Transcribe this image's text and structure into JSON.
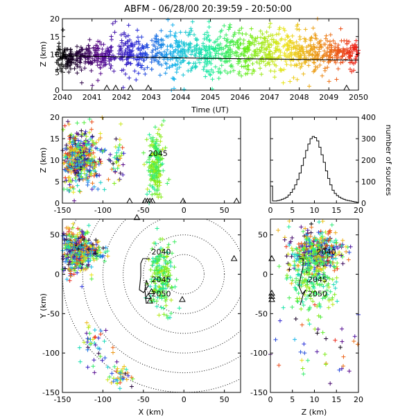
{
  "title": "ABFM - 06/28/00 20:39:59 - 20:50:00",
  "chart_data": [
    {
      "id": "time-height",
      "type": "scatter",
      "xlabel": "Time (UT)",
      "ylabel": "Z (km)",
      "xlim": [
        2040,
        2050
      ],
      "ylim": [
        0,
        20
      ],
      "x_ticks": [
        "2040",
        "2041",
        "2042",
        "2043",
        "2044",
        "2045",
        "2046",
        "2047",
        "2048",
        "2049",
        "2050"
      ],
      "y_ticks": [
        "0",
        "5",
        "10",
        "15",
        "20"
      ],
      "color_by": "time",
      "color_scale": [
        "#000000",
        "#5a0a8c",
        "#2a2ad8",
        "#18b4ec",
        "#18ec9c",
        "#6cec18",
        "#ece418",
        "#ec8c18",
        "#ec1818"
      ],
      "trend_line": [
        [
          2040,
          9.6
        ],
        [
          2045,
          8.9
        ],
        [
          2050,
          8.4
        ]
      ],
      "ground_markers_x": [
        2041.5,
        2041.8,
        2042.3,
        2042.9,
        2049.6
      ],
      "density": [
        {
          "t": 2040.3,
          "zc": 9.0,
          "spread": 1.6
        },
        {
          "t": 2041.3,
          "zc": 9.5,
          "spread": 2.0
        },
        {
          "t": 2042.4,
          "zc": 10.0,
          "spread": 2.5
        },
        {
          "t": 2043.5,
          "zc": 10.5,
          "spread": 3.0
        },
        {
          "t": 2044.5,
          "zc": 10.5,
          "spread": 3.0
        },
        {
          "t": 2045.5,
          "zc": 10.5,
          "spread": 3.0
        },
        {
          "t": 2046.5,
          "zc": 10.5,
          "spread": 3.0
        },
        {
          "t": 2047.5,
          "zc": 10.5,
          "spread": 3.0
        },
        {
          "t": 2048.5,
          "zc": 10.5,
          "spread": 2.5
        },
        {
          "t": 2049.5,
          "zc": 10.5,
          "spread": 2.0
        }
      ]
    },
    {
      "id": "x-z",
      "type": "scatter",
      "xlabel": "",
      "ylabel": "Z (km)",
      "xlim": [
        -150,
        70
      ],
      "ylim": [
        0,
        20
      ],
      "x_ticks": [
        "-150",
        "-100",
        "-50",
        "0",
        "50"
      ],
      "y_ticks": [
        "0",
        "5",
        "10",
        "15",
        "20"
      ],
      "annotations": [
        {
          "text": "2045",
          "x": -44,
          "z": 11.0
        }
      ],
      "ground_markers_x": [
        -67,
        -48,
        -45,
        -42,
        -39,
        -1,
        65
      ],
      "clusters": [
        {
          "xc": -132,
          "zc": 10.5,
          "sx": 10,
          "sz": 3.0,
          "n": 420
        },
        {
          "xc": -112,
          "zc": 10.0,
          "sx": 8,
          "sz": 4.0,
          "n": 80
        },
        {
          "xc": -82,
          "zc": 9.5,
          "sx": 4,
          "sz": 3.0,
          "n": 40
        },
        {
          "xc": -35,
          "zc": 9.0,
          "sx": 5,
          "sz": 3.5,
          "n": 200
        }
      ]
    },
    {
      "id": "altitude-histogram",
      "type": "line",
      "xlabel": "",
      "ylabel": "number of sources",
      "xlim": [
        0,
        20
      ],
      "ylim": [
        0,
        400
      ],
      "x_ticks": [
        "0",
        "5",
        "10",
        "15",
        "20"
      ],
      "y_ticks": [
        "0",
        "100",
        "200",
        "300",
        "400"
      ],
      "bins": [
        0,
        0.5,
        1,
        1.5,
        2,
        2.5,
        3,
        3.5,
        4,
        4.5,
        5,
        5.5,
        6,
        6.5,
        7,
        7.5,
        8,
        8.5,
        9,
        9.5,
        10,
        10.5,
        11,
        11.5,
        12,
        12.5,
        13,
        13.5,
        14,
        14.5,
        15,
        15.5,
        16,
        16.5,
        17,
        17.5,
        18,
        18.5,
        19,
        19.5
      ],
      "counts": [
        80,
        10,
        10,
        12,
        14,
        18,
        22,
        28,
        38,
        50,
        65,
        85,
        110,
        140,
        175,
        210,
        245,
        275,
        300,
        310,
        305,
        290,
        260,
        225,
        190,
        150,
        115,
        85,
        60,
        45,
        35,
        28,
        22,
        18,
        14,
        12,
        10,
        8,
        6,
        4
      ]
    },
    {
      "id": "plan-view",
      "type": "scatter",
      "xlabel": "X (km)",
      "ylabel": "Y (km)",
      "xlim": [
        -150,
        70
      ],
      "ylim": [
        -150,
        70
      ],
      "x_ticks": [
        "-150",
        "-100",
        "-50",
        "0",
        "50"
      ],
      "y_ticks": [
        "-150",
        "-100",
        "-50",
        "0",
        "50"
      ],
      "annotations": [
        {
          "text": "2040",
          "x": -40,
          "y": 25
        },
        {
          "text": "2045",
          "x": -40,
          "y": -10
        },
        {
          "text": "2050",
          "x": -40,
          "y": -28
        }
      ],
      "range_ring_radius_km": [
        25,
        50,
        75,
        100,
        125,
        150
      ],
      "stations": [
        [
          -58,
          72
        ],
        [
          62,
          20
        ],
        [
          -2,
          -32
        ],
        [
          -40,
          -22
        ],
        [
          -44,
          -28
        ],
        [
          -42,
          -34
        ]
      ],
      "clusters": [
        {
          "xc": -132,
          "yc": 28,
          "sx": 10,
          "sy": 14,
          "n": 420
        },
        {
          "xc": -110,
          "yc": 30,
          "sx": 6,
          "sy": 6,
          "n": 60
        },
        {
          "xc": -28,
          "yc": -5,
          "sx": 7,
          "sy": 22,
          "n": 200
        },
        {
          "xc": -110,
          "yc": -90,
          "sx": 10,
          "sy": 15,
          "n": 40
        },
        {
          "xc": -80,
          "yc": -130,
          "sx": 6,
          "sy": 8,
          "n": 40
        }
      ]
    },
    {
      "id": "z-y",
      "type": "scatter",
      "xlabel": "Z (km)",
      "ylabel": "",
      "xlim": [
        0,
        20
      ],
      "ylim": [
        -150,
        70
      ],
      "x_ticks": [
        "0",
        "5",
        "10",
        "15",
        "20"
      ],
      "y_ticks": [
        "-150",
        "-100",
        "-50",
        "0",
        "50"
      ],
      "annotations": [
        {
          "text": "2040",
          "z": 10.5,
          "y": 25
        },
        {
          "text": "2045",
          "z": 8.5,
          "y": -10
        },
        {
          "text": "2050",
          "z": 8.5,
          "y": -28
        }
      ],
      "ground_markers_y": [
        20,
        -24,
        -28,
        -32
      ],
      "clusters": [
        {
          "zc": 10.5,
          "yc": 28,
          "sz": 3.0,
          "sy": 14,
          "n": 400
        },
        {
          "zc": 9.5,
          "yc": -5,
          "sz": 3.0,
          "sy": 22,
          "n": 200
        },
        {
          "zc": 12,
          "yc": -100,
          "sz": 5.0,
          "sy": 30,
          "n": 40
        }
      ]
    }
  ]
}
